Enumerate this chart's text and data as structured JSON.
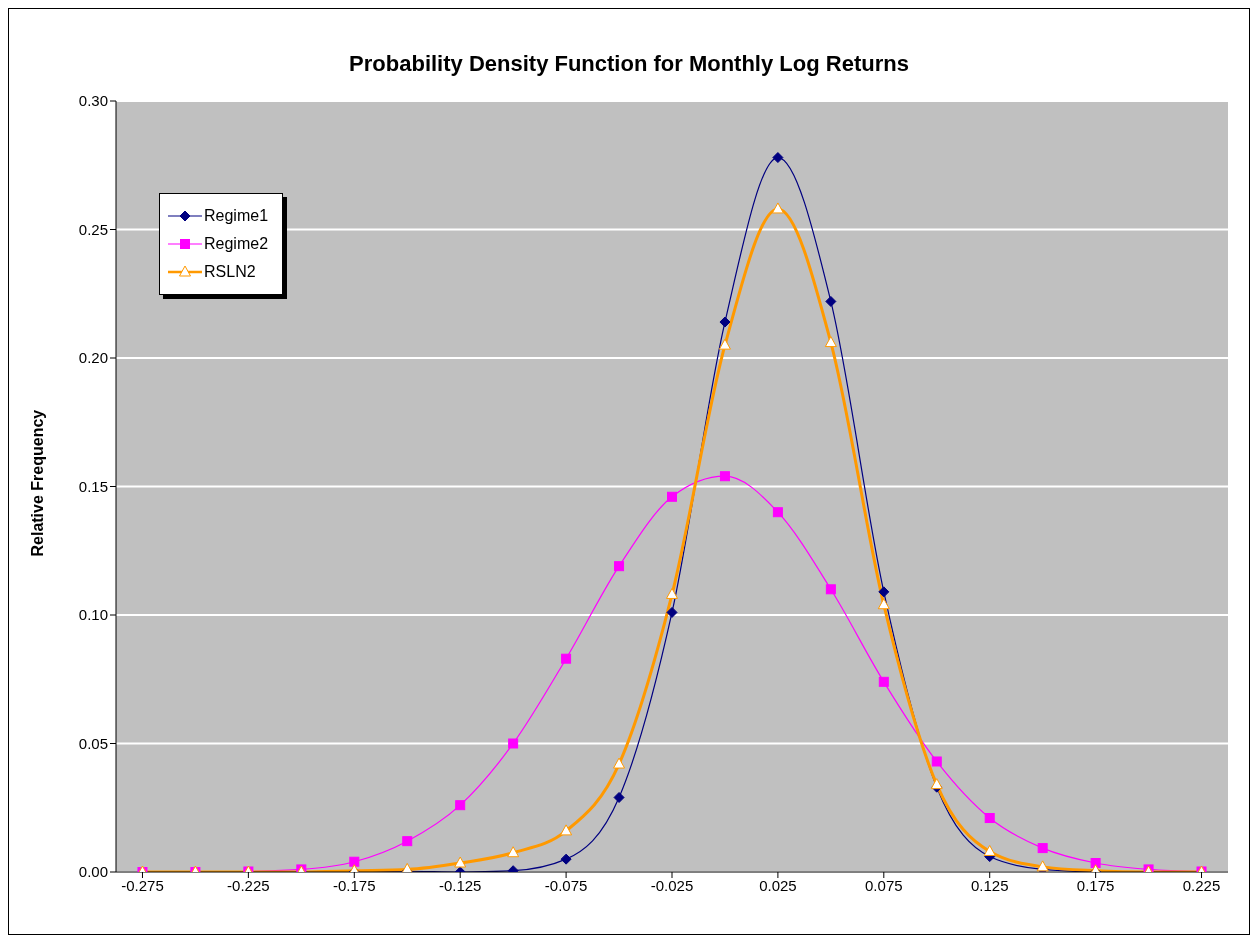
{
  "chart_data": {
    "type": "line",
    "title": "Probability Density Function for Monthly Log Returns",
    "ylabel": "Relative Frequency",
    "x": [
      -0.275,
      -0.25,
      -0.225,
      -0.2,
      -0.175,
      -0.15,
      -0.125,
      -0.1,
      -0.075,
      -0.05,
      -0.025,
      0,
      0.025,
      0.05,
      0.075,
      0.1,
      0.125,
      0.15,
      0.175,
      0.2,
      0.225
    ],
    "xlim": [
      -0.2875,
      0.2375
    ],
    "xticks": [
      -0.275,
      -0.225,
      -0.175,
      -0.125,
      -0.075,
      -0.025,
      0.025,
      0.075,
      0.125,
      0.175,
      0.225
    ],
    "ylim": [
      0,
      0.3
    ],
    "yticks": [
      {
        "value": 0,
        "label": "0.00"
      },
      0.05,
      {
        "value": 0.1,
        "label": "0.10"
      },
      0.15,
      {
        "value": 0.2,
        "label": "0.20"
      },
      0.25,
      {
        "value": 0.3,
        "label": "0.30"
      }
    ],
    "grid": "y",
    "legend": "top left",
    "line_style": "solid",
    "series": [
      {
        "name": "Regime1",
        "color": "#000080",
        "marker": "diamond",
        "values": [
          null,
          null,
          null,
          0,
          0,
          0.0003,
          0,
          0.0005,
          0.005,
          0.029,
          0.101,
          0.214,
          0.278,
          0.222,
          0.109,
          0.033,
          0.006,
          0.001,
          0,
          null,
          null
        ]
      },
      {
        "name": "Regime2",
        "color": "#ff00ff",
        "marker": "square",
        "values": [
          0,
          0,
          0.0002,
          0.001,
          0.004,
          0.012,
          0.026,
          0.05,
          0.083,
          0.119,
          0.146,
          0.154,
          0.14,
          0.11,
          0.074,
          0.043,
          0.021,
          0.0093,
          0.0035,
          0.001,
          0.0002
        ]
      },
      {
        "name": "RSLN2",
        "color": "#ff9900",
        "marker": "triangle",
        "values": [
          0,
          0,
          0,
          0,
          0.0005,
          0.001,
          0.0035,
          0.0075,
          0.016,
          0.042,
          0.108,
          0.205,
          0.258,
          0.206,
          0.104,
          0.034,
          0.008,
          0.002,
          0.0005,
          0,
          0
        ]
      }
    ]
  }
}
